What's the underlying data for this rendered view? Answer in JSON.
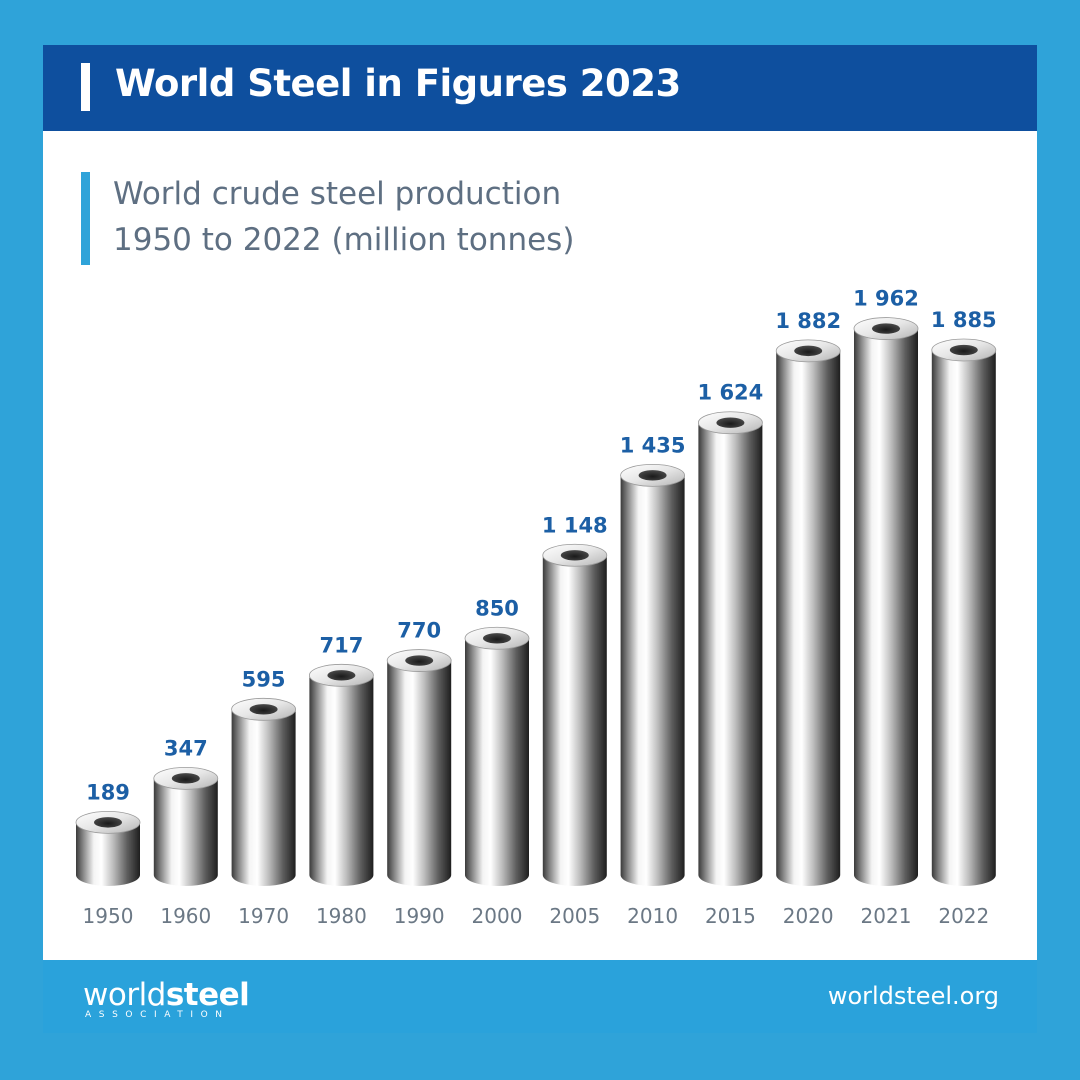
{
  "header": {
    "title": "World Steel in Figures 2023"
  },
  "subtitle": {
    "line1": "World crude steel production",
    "line2": "1950 to 2022 (million tonnes)"
  },
  "chart_data": {
    "type": "bar",
    "title": "World crude steel production 1950 to 2022 (million tonnes)",
    "categories": [
      "1950",
      "1960",
      "1970",
      "1980",
      "1990",
      "2000",
      "2005",
      "2010",
      "2015",
      "2020",
      "2021",
      "2022"
    ],
    "values": [
      189,
      347,
      595,
      717,
      770,
      850,
      1148,
      1435,
      1624,
      1882,
      1962,
      1885
    ],
    "value_labels": [
      "189",
      "347",
      "595",
      "717",
      "770",
      "850",
      "1 148",
      "1 435",
      "1 624",
      "1 882",
      "1 962",
      "1 885"
    ],
    "xlabel": "",
    "ylabel": "",
    "ylim": [
      0,
      2000
    ],
    "grid": false,
    "legend": "none"
  },
  "footer": {
    "logo_light": "world",
    "logo_bold": "steel",
    "logo_sub": "ASSOCIATION",
    "url": "worldsteel.org"
  },
  "colors": {
    "background": "#2fa3d9",
    "header": "#0e4f9e",
    "footer": "#2aa2db",
    "value_label": "#1c5fa5",
    "category_label": "#6b7885"
  }
}
